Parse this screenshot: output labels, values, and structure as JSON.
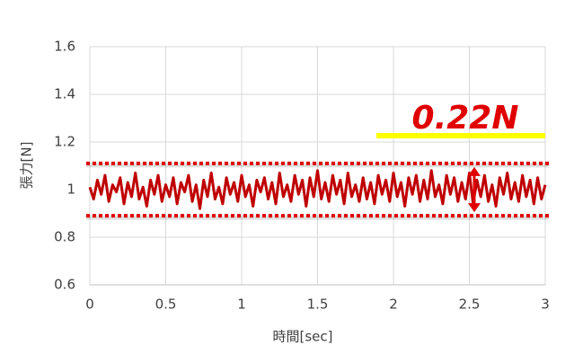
{
  "chart_data": {
    "type": "line",
    "x_label": "時間[sec]",
    "y_label": "張力[N]",
    "annotation": "0.22N",
    "bounds": [
      1.11,
      0.89
    ],
    "bounds_color": "#e00000",
    "highlight_color": "#ffff00",
    "xlim": [
      0,
      3
    ],
    "xticks": [
      0,
      0.5,
      1,
      1.5,
      2,
      2.5,
      3
    ],
    "ylim": [
      0.6,
      1.6
    ],
    "yticks": [
      0.6,
      0.8,
      1,
      1.2,
      1.4,
      1.6
    ],
    "grid": true,
    "x": [
      0,
      0.025,
      0.05,
      0.075,
      0.1,
      0.125,
      0.15,
      0.175,
      0.2,
      0.225,
      0.25,
      0.275,
      0.3,
      0.325,
      0.35,
      0.375,
      0.4,
      0.425,
      0.45,
      0.475,
      0.5,
      0.525,
      0.55,
      0.575,
      0.6,
      0.625,
      0.65,
      0.675,
      0.7,
      0.725,
      0.75,
      0.775,
      0.8,
      0.825,
      0.85,
      0.875,
      0.9,
      0.925,
      0.95,
      0.975,
      1,
      1.025,
      1.05,
      1.075,
      1.1,
      1.125,
      1.15,
      1.175,
      1.2,
      1.225,
      1.25,
      1.275,
      1.3,
      1.325,
      1.35,
      1.375,
      1.4,
      1.425,
      1.45,
      1.475,
      1.5,
      1.525,
      1.55,
      1.575,
      1.6,
      1.625,
      1.65,
      1.675,
      1.7,
      1.725,
      1.75,
      1.775,
      1.8,
      1.825,
      1.85,
      1.875,
      1.9,
      1.925,
      1.95,
      1.975,
      2,
      2.025,
      2.05,
      2.075,
      2.1,
      2.125,
      2.15,
      2.175,
      2.2,
      2.225,
      2.25,
      2.275,
      2.3,
      2.325,
      2.35,
      2.375,
      2.4,
      2.425,
      2.45,
      2.475,
      2.5,
      2.525,
      2.55,
      2.575,
      2.6,
      2.625,
      2.65,
      2.675,
      2.7,
      2.725,
      2.75,
      2.775,
      2.8,
      2.825,
      2.85,
      2.875,
      2.9,
      2.925,
      2.95,
      2.975,
      3
    ],
    "series": [
      {
        "color": "#c00000",
        "values": [
          1.01,
          0.96,
          1.04,
          0.98,
          1.06,
          0.95,
          1.02,
          0.99,
          1.05,
          0.94,
          1.03,
          0.97,
          1.07,
          0.96,
          1.01,
          0.93,
          1.04,
          0.98,
          1.06,
          0.95,
          1.02,
          0.97,
          1.05,
          0.94,
          1.03,
          0.99,
          1.06,
          0.95,
          1.02,
          0.92,
          1.04,
          0.97,
          1.07,
          0.96,
          1.01,
          0.94,
          1.05,
          0.98,
          1.03,
          0.95,
          1.06,
          0.97,
          1.02,
          0.93,
          1.04,
          0.99,
          1.05,
          0.96,
          1.03,
          0.94,
          1.07,
          0.97,
          1.02,
          0.95,
          1.06,
          0.98,
          1.04,
          0.93,
          1.05,
          0.97,
          1.08,
          0.96,
          1.03,
          0.95,
          1.06,
          0.98,
          1.04,
          0.94,
          1.07,
          0.97,
          1.02,
          0.95,
          1.05,
          0.96,
          1.03,
          0.94,
          1.06,
          0.98,
          1.04,
          0.95,
          1.07,
          0.97,
          1.03,
          0.93,
          1.05,
          0.98,
          1.06,
          0.95,
          1.04,
          0.96,
          1.08,
          0.97,
          1.02,
          0.94,
          1.06,
          0.98,
          1.05,
          0.95,
          1.03,
          0.96,
          1.07,
          0.94,
          1.04,
          0.97,
          1.06,
          0.95,
          1.02,
          0.93,
          1.05,
          0.98,
          1.07,
          0.96,
          1.03,
          0.95,
          1.06,
          0.97,
          1.04,
          0.94,
          1.05,
          0.96,
          1.02
        ]
      }
    ]
  }
}
